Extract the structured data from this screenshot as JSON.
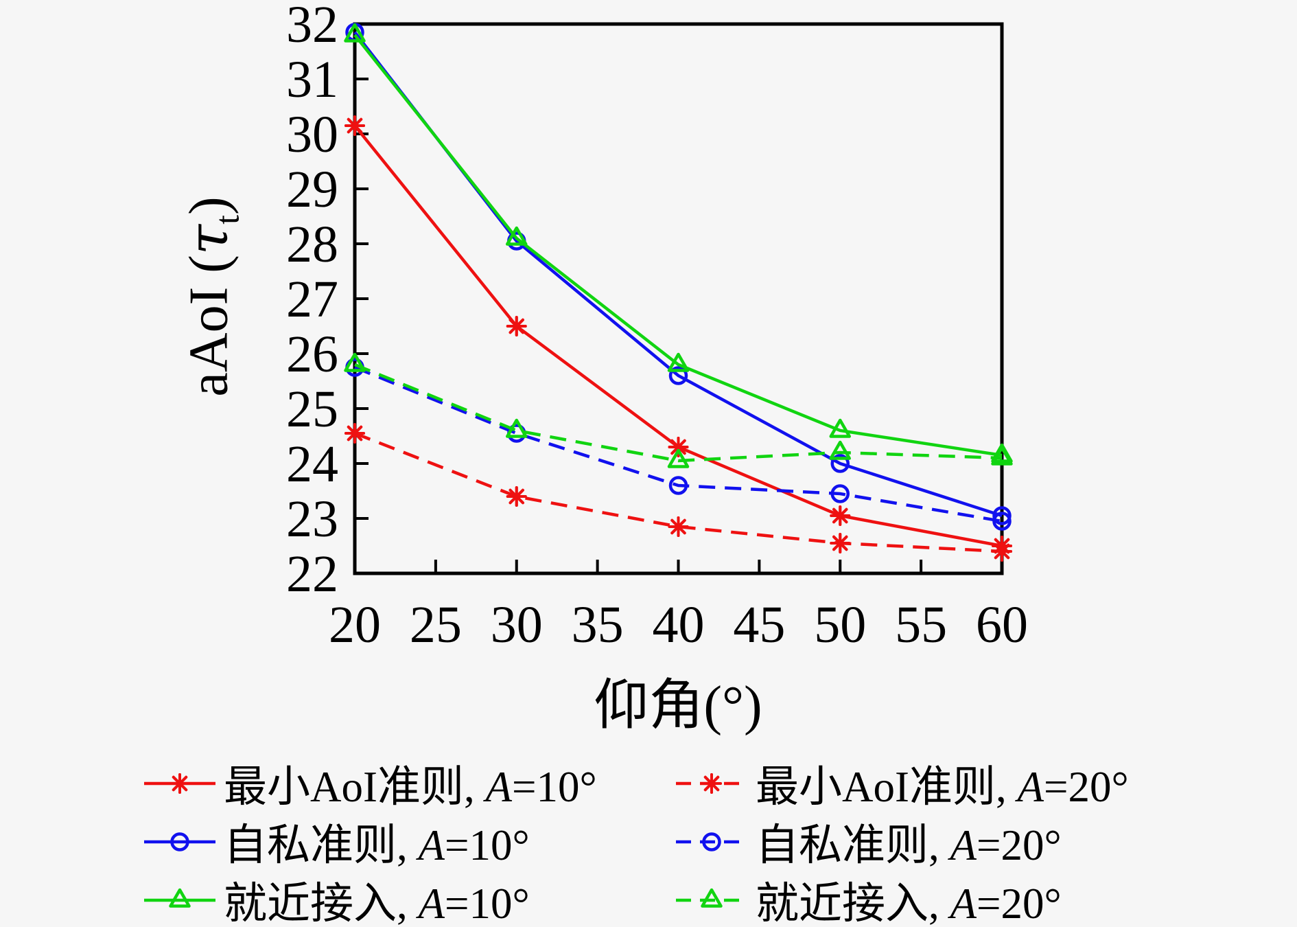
{
  "figure_title": "",
  "chart_data": {
    "type": "line",
    "title": "",
    "xlabel": "仰角(°)",
    "ylabel": "aAoI (τt)",
    "ylabel_parts": {
      "prefix": "aAoI (",
      "tau": "τ",
      "sub": "t",
      "suffix": ")"
    },
    "xlim": [
      20,
      60
    ],
    "ylim": [
      22,
      32
    ],
    "xticks": [
      20,
      25,
      30,
      35,
      40,
      45,
      50,
      55,
      60
    ],
    "yticks": [
      22,
      23,
      24,
      25,
      26,
      27,
      28,
      29,
      30,
      31,
      32
    ],
    "grid": false,
    "legend_position": "below-two-columns",
    "x": [
      20,
      30,
      40,
      50,
      60
    ],
    "series": [
      {
        "name": "最小AoI准则, A=10°",
        "legend_text": "最小AoI准则, ",
        "legend_var": "A",
        "legend_val": "=10°",
        "color": "#ee1111",
        "dash": false,
        "marker": "asterisk",
        "values": [
          30.15,
          26.5,
          24.3,
          23.05,
          22.5
        ]
      },
      {
        "name": "自私准则, A=10°",
        "legend_text": "自私准则, ",
        "legend_var": "A",
        "legend_val": "=10°",
        "color": "#1111ee",
        "dash": false,
        "marker": "circle",
        "values": [
          31.85,
          28.05,
          25.6,
          24.0,
          23.05
        ]
      },
      {
        "name": "就近接入, A=10°",
        "legend_text": "就近接入, ",
        "legend_var": "A",
        "legend_val": "=10°",
        "color": "#11d411",
        "dash": false,
        "marker": "triangle",
        "values": [
          31.8,
          28.1,
          25.8,
          24.6,
          24.15
        ]
      },
      {
        "name": "最小AoI准则, A=20°",
        "legend_text": "最小AoI准则, ",
        "legend_var": "A",
        "legend_val": "=20°",
        "color": "#ee1111",
        "dash": true,
        "marker": "asterisk",
        "values": [
          24.55,
          23.4,
          22.85,
          22.55,
          22.4
        ]
      },
      {
        "name": "自私准则, A=20°",
        "legend_text": "自私准则, ",
        "legend_var": "A",
        "legend_val": "=20°",
        "color": "#1111ee",
        "dash": true,
        "marker": "circle",
        "values": [
          25.75,
          24.55,
          23.6,
          23.45,
          22.95
        ]
      },
      {
        "name": "就近接入, A=20°",
        "legend_text": "就近接入, ",
        "legend_var": "A",
        "legend_val": "=20°",
        "color": "#11d411",
        "dash": true,
        "marker": "triangle",
        "values": [
          25.8,
          24.6,
          24.05,
          24.2,
          24.1
        ]
      }
    ]
  }
}
